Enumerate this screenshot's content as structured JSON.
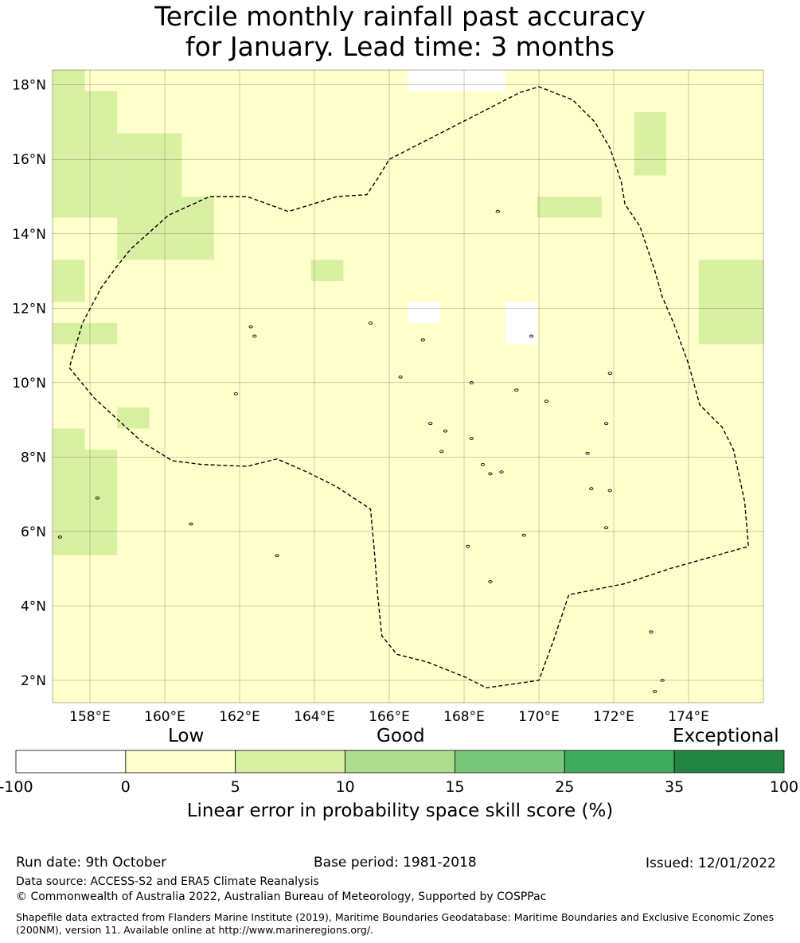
{
  "title_line1": "Tercile monthly rainfall past accuracy",
  "title_line2": "for January. Lead time: 3 months",
  "map": {
    "lon_range": [
      157,
      176
    ],
    "lat_range": [
      1.4,
      18.4
    ],
    "lat_ticks": [
      {
        "value": 2,
        "label": "2°N"
      },
      {
        "value": 4,
        "label": "4°N"
      },
      {
        "value": 6,
        "label": "6°N"
      },
      {
        "value": 8,
        "label": "8°N"
      },
      {
        "value": 10,
        "label": "10°N"
      },
      {
        "value": 12,
        "label": "12°N"
      },
      {
        "value": 14,
        "label": "14°N"
      },
      {
        "value": 16,
        "label": "16°N"
      },
      {
        "value": 18,
        "label": "18°N"
      }
    ],
    "lon_ticks": [
      {
        "value": 158,
        "label": "158°E"
      },
      {
        "value": 160,
        "label": "160°E"
      },
      {
        "value": 162,
        "label": "162°E"
      },
      {
        "value": 164,
        "label": "164°E"
      },
      {
        "value": 166,
        "label": "166°E"
      },
      {
        "value": 168,
        "label": "168°E"
      },
      {
        "value": 170,
        "label": "170°E"
      },
      {
        "value": 172,
        "label": "172°E"
      },
      {
        "value": 174,
        "label": "174°E"
      }
    ],
    "eez_boundary": [
      [
        157.45,
        10.4
      ],
      [
        158.1,
        9.6
      ],
      [
        159.4,
        8.4
      ],
      [
        160.2,
        7.9
      ],
      [
        161.0,
        7.8
      ],
      [
        162.2,
        7.75
      ],
      [
        163.0,
        7.95
      ],
      [
        163.8,
        7.6
      ],
      [
        164.6,
        7.2
      ],
      [
        165.5,
        6.6
      ],
      [
        165.6,
        5.5
      ],
      [
        165.7,
        4.2
      ],
      [
        165.8,
        3.2
      ],
      [
        166.2,
        2.7
      ],
      [
        167.0,
        2.5
      ],
      [
        168.0,
        2.1
      ],
      [
        168.6,
        1.8
      ],
      [
        170.0,
        2.0
      ],
      [
        170.4,
        3.1
      ],
      [
        170.8,
        4.3
      ],
      [
        172.3,
        4.6
      ],
      [
        173.5,
        5.0
      ],
      [
        175.6,
        5.6
      ],
      [
        175.5,
        6.8
      ],
      [
        175.2,
        8.2
      ],
      [
        174.9,
        8.8
      ],
      [
        174.3,
        9.4
      ],
      [
        174.0,
        10.5
      ],
      [
        173.6,
        11.6
      ],
      [
        173.3,
        12.3
      ],
      [
        173.1,
        13.0
      ],
      [
        172.7,
        14.2
      ],
      [
        172.3,
        14.8
      ],
      [
        172.2,
        15.4
      ],
      [
        171.9,
        16.3
      ],
      [
        171.5,
        17.0
      ],
      [
        170.9,
        17.6
      ],
      [
        170.0,
        17.95
      ],
      [
        169.5,
        17.8
      ],
      [
        166.0,
        16.0
      ],
      [
        165.7,
        15.5
      ],
      [
        165.4,
        15.05
      ],
      [
        164.6,
        15.0
      ],
      [
        163.8,
        14.75
      ],
      [
        163.3,
        14.6
      ],
      [
        162.2,
        15.0
      ],
      [
        161.2,
        15.0
      ],
      [
        160.1,
        14.5
      ],
      [
        159.1,
        13.6
      ],
      [
        158.7,
        13.1
      ],
      [
        158.3,
        12.55
      ],
      [
        157.8,
        11.6
      ],
      [
        157.45,
        10.4
      ]
    ],
    "skill_grid": {
      "description": "LEPS skill class per 0.833° cell; row 0 = northern-most row, columns from west to east. Class: 0 below zero (white), 1 0-5, 2 5-10, 3 10-15, 4 15-25, 5 25-35, 6 35-100",
      "rows": [
        "2111111111100011111111",
        "2211111111111111111111",
        "2211111111111111112111",
        "2222111111111111112111",
        "2222111111111111112111",
        "2222111111111111111111",
        "2222211111111112211111",
        "1122211111111111111111",
        "1122211111111111111111",
        "2111111121111111111122",
        "2111111111111111111122",
        "1111111111101101111122",
        "2211111111111101111122",
        "1111111111111111111111",
        "1111111111111111111111",
        "1111111111111111111111",
        "1121111111111111111111",
        "2111111111111111111111",
        "2211111111111111111111",
        "2211111111111111111111",
        "2211111111111111111111",
        "2211111111111111111111",
        "2211111111111111111111",
        "1111111111111111111111",
        "1111111111111111111111",
        "1111111111111111111111",
        "1111111111111111111111",
        "1111111111111111111111",
        "1111111111111111111111",
        "1111111111111111111111"
      ]
    }
  },
  "colorbar": {
    "scale_words": [
      "Low",
      "Good",
      "Exceptional"
    ],
    "ticks": [
      "-100",
      "0",
      "5",
      "10",
      "15",
      "25",
      "35",
      "100"
    ],
    "colors": [
      "#ffffff",
      "#ffffcc",
      "#d9f0a3",
      "#addd8e",
      "#78c679",
      "#41ab5d",
      "#238443"
    ],
    "label": "Linear error in probability space skill score (%)"
  },
  "footer": {
    "run_date": "Run date: 9th October",
    "base_period": "Base period: 1981-2018",
    "issued": "Issued: 12/01/2022",
    "data_source": "Data source: ACCESS-S2 and ERA5 Climate Reanalysis",
    "copyright": "© Commonwealth of Australia 2022, Australian Bureau of Meteorology, Supported by COSPPac",
    "shapefile": "Shapefile data extracted from Flanders Marine Institute (2019), Maritime Boundaries Geodatabase: Maritime Boundaries and Exclusive Economic Zones (200NM), version 11. Available online at http://www.marineregions.org/."
  }
}
